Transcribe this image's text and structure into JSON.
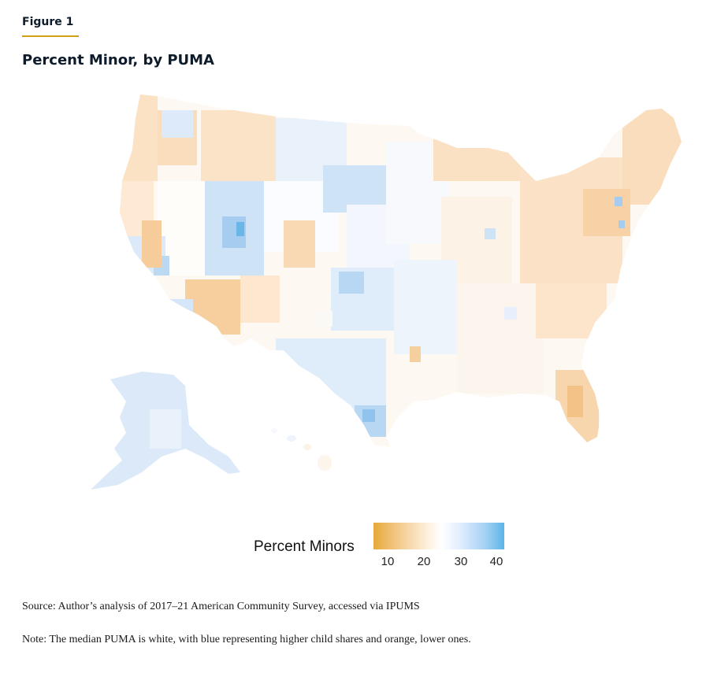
{
  "figure_label": "Figure 1",
  "title": "Percent Minor, by PUMA",
  "legend": {
    "title": "Percent Minors",
    "ticks": [
      "10",
      "20",
      "30",
      "40"
    ],
    "low_color": "#e8a93b",
    "mid_color": "#ffffff",
    "high_color": "#5ab5e8"
  },
  "source": "Source: Author’s analysis of 2017–21 American Community Survey, accessed via IPUMS",
  "note": "Note: The median PUMA is white, with blue representing higher child shares and orange, lower ones."
}
